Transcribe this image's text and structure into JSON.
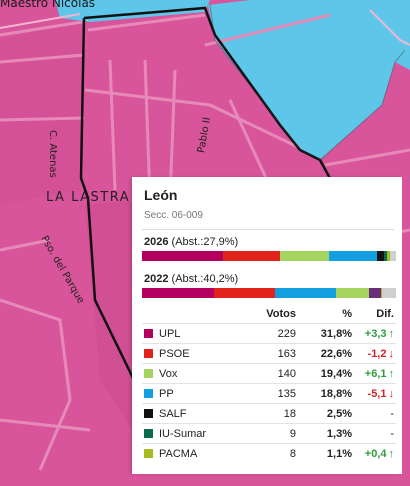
{
  "map": {
    "street_labels": {
      "maestro_nicolas": "Maestro Nicolás",
      "atenas": "C. Atenas",
      "la_lastra": "LA LASTRA",
      "paseo_parque": "Pso. del Parque",
      "pablo_ii": "Pablo II"
    },
    "colors": {
      "district_fill": "#d9559b",
      "pp_fill": "#5ec6e8",
      "road": "#e68ab9",
      "boundary": "#111111"
    }
  },
  "panel": {
    "title": "León",
    "section_code": "Secc. 06-009",
    "election_2026": {
      "year": "2026",
      "abst": "(Abst.:27,9%)"
    },
    "election_2022": {
      "year": "2022",
      "abst": "(Abst.:40,2%)"
    },
    "bar_2026": [
      {
        "party": "UPL",
        "share": 31.8,
        "color": "#b3005e"
      },
      {
        "party": "PSOE",
        "share": 22.6,
        "color": "#e1231c"
      },
      {
        "party": "Vox",
        "share": 19.4,
        "color": "#a5d560"
      },
      {
        "party": "PP",
        "share": 18.8,
        "color": "#119fe0"
      },
      {
        "party": "SALF",
        "share": 2.5,
        "color": "#111111"
      },
      {
        "party": "IU-Sumar",
        "share": 1.3,
        "color": "#0b6b4a"
      },
      {
        "party": "PACMA",
        "share": 1.1,
        "color": "#a9b920"
      },
      {
        "party": "Otros",
        "share": 2.5,
        "color": "#cfcfcf"
      }
    ],
    "bar_2022": [
      {
        "party": "UPL",
        "share": 28.5,
        "color": "#b3005e"
      },
      {
        "party": "PSOE",
        "share": 23.8,
        "color": "#e1231c"
      },
      {
        "party": "PP",
        "share": 23.9,
        "color": "#119fe0"
      },
      {
        "party": "Vox",
        "share": 13.3,
        "color": "#a5d560"
      },
      {
        "party": "Podemos",
        "share": 4.5,
        "color": "#6b2c7a"
      },
      {
        "party": "PACMA",
        "share": 0.7,
        "color": "#a9b920"
      },
      {
        "party": "Otros",
        "share": 5.3,
        "color": "#cfcfcf"
      }
    ],
    "columns": {
      "votes": "Votos",
      "pct": "%",
      "diff": "Dif."
    },
    "rows": [
      {
        "name": "UPL",
        "votes": "229",
        "pct": "31,8%",
        "diff": "+3,3",
        "dir": "up",
        "color": "#b3005e"
      },
      {
        "name": "PSOE",
        "votes": "163",
        "pct": "22,6%",
        "diff": "-1,2",
        "dir": "down",
        "color": "#e1231c"
      },
      {
        "name": "Vox",
        "votes": "140",
        "pct": "19,4%",
        "diff": "+6,1",
        "dir": "up",
        "color": "#a5d560"
      },
      {
        "name": "PP",
        "votes": "135",
        "pct": "18,8%",
        "diff": "-5,1",
        "dir": "down",
        "color": "#119fe0"
      },
      {
        "name": "SALF",
        "votes": "18",
        "pct": "2,5%",
        "diff": "-",
        "dir": "none",
        "color": "#111111"
      },
      {
        "name": "IU-Sumar",
        "votes": "9",
        "pct": "1,3%",
        "diff": "-",
        "dir": "none",
        "color": "#0b6b4a"
      },
      {
        "name": "PACMA",
        "votes": "8",
        "pct": "1,1%",
        "diff": "+0,4",
        "dir": "up",
        "color": "#a9b920"
      }
    ]
  }
}
